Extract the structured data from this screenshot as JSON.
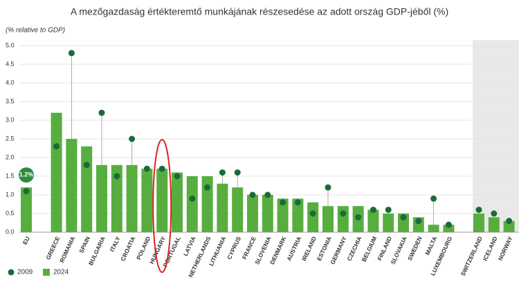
{
  "chart_data": {
    "type": "bar-dot",
    "title": "A mezőgazdaság értékteremtő munkájának részesedése az adott ország GDP-jéből (%)",
    "y_label": "(% relative to GDP)",
    "categories": [
      "EU",
      "GREECE",
      "ROMANIA",
      "SPAIN",
      "BULGARIA",
      "ITALY",
      "CROATIA",
      "POLAND",
      "HUNGARY",
      "PORTUGAL",
      "LATVIA",
      "NETHERLANDS",
      "LITHUANIA",
      "CYPRUS",
      "FRANCE",
      "SLOVENIA",
      "DENMARK",
      "AUSTRIA",
      "IRELAND",
      "ESTONIA",
      "GERMANY",
      "CZECHIA",
      "BELGIUM",
      "FINLAND",
      "SLOVAKIA",
      "SWEDEN",
      "MALTA",
      "LUXEMBOURG",
      "SWITZERLAND",
      "ICELAND",
      "NORWAY"
    ],
    "series": [
      {
        "name": "2009",
        "color": "#1b6b3a",
        "values": [
          1.1,
          2.3,
          4.8,
          1.8,
          3.2,
          1.5,
          2.5,
          1.7,
          1.7,
          1.5,
          0.9,
          1.2,
          1.6,
          1.6,
          1.0,
          1.0,
          0.8,
          0.8,
          0.5,
          1.2,
          0.5,
          0.4,
          0.6,
          0.6,
          0.4,
          0.3,
          0.9,
          0.2,
          0.6,
          0.5,
          0.3
        ]
      },
      {
        "name": "2024",
        "color": "#57ae3f",
        "values": [
          1.2,
          3.2,
          2.5,
          2.3,
          1.8,
          1.8,
          1.8,
          1.7,
          1.7,
          1.6,
          1.5,
          1.5,
          1.3,
          1.2,
          1.0,
          1.0,
          0.9,
          0.9,
          0.8,
          0.7,
          0.7,
          0.7,
          0.6,
          0.5,
          0.5,
          0.4,
          0.2,
          0.2,
          0.5,
          0.4,
          0.3
        ],
        "value_labels": [
          "1.2%",
          null,
          null,
          null,
          null,
          null,
          null,
          null,
          null,
          null,
          null,
          null,
          null,
          null,
          null,
          null,
          null,
          null,
          null,
          null,
          null,
          null,
          null,
          null,
          null,
          null,
          null,
          null,
          null,
          null,
          null
        ]
      }
    ],
    "ylim": [
      0,
      5
    ],
    "yticks": [
      {
        "value": 0,
        "label": "0.0"
      },
      0.5,
      {
        "value": 1,
        "label": "1.0"
      },
      1.5,
      {
        "value": 2,
        "label": "2.0"
      },
      2.5,
      {
        "value": 3,
        "label": "3.0"
      },
      3.5,
      {
        "value": 4,
        "label": "4.0"
      },
      4.5,
      {
        "value": 5,
        "label": "5.0"
      }
    ],
    "grid": true
  }
}
